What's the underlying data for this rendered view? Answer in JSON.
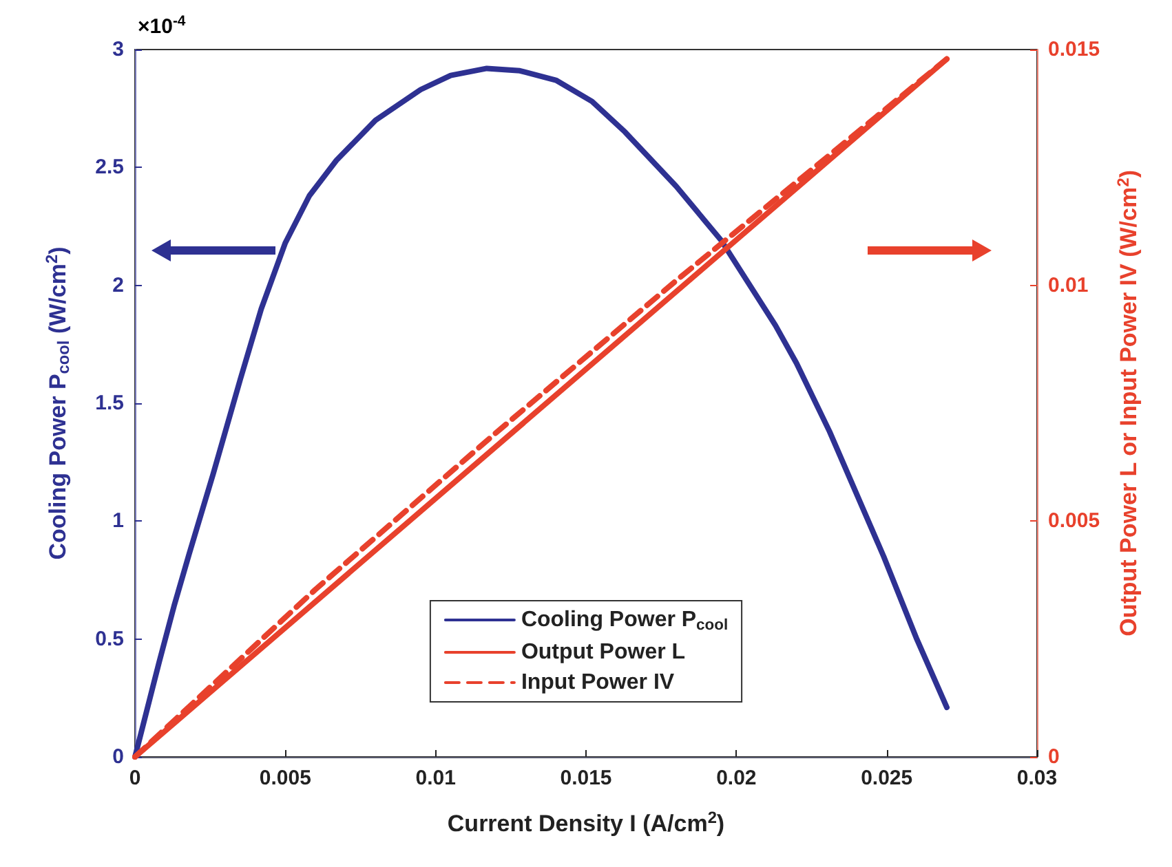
{
  "chart_data": {
    "type": "line",
    "xlabel": "Current Density I (A/cm$^{2}$)",
    "ylabel": "Cooling Power P$_{cool}$ (W/cm$^{2}$)",
    "y2label": "Output Power L or Input Power IV (W/cm$^{2}$)",
    "annotations": [
      "×10$^{-4}$"
    ],
    "series": [
      {
        "name": "Cooling Power P$_{cool}$",
        "color": "#2e3192",
        "x": [
          0,
          0.0004,
          0.0008,
          0.0013,
          0.0018,
          0.0026,
          0.0035,
          0.0042,
          0.005,
          0.0058,
          0.0067,
          0.008,
          0.0095,
          0.0105,
          0.0117,
          0.0128,
          0.014,
          0.0152,
          0.0163,
          0.018,
          0.0195,
          0.0213,
          0.022,
          0.0231,
          0.0249,
          0.026,
          0.027
        ],
        "values": [
          0,
          0.2,
          0.4,
          0.64,
          0.86,
          1.2,
          1.6,
          1.9,
          2.18,
          2.38,
          2.53,
          2.7,
          2.83,
          2.89,
          2.92,
          2.91,
          2.87,
          2.78,
          2.65,
          2.42,
          2.19,
          1.83,
          1.67,
          1.38,
          0.85,
          0.5,
          0.21
        ]
      },
      {
        "name": "Output Power L",
        "color": "#e8412c",
        "axis": "y2",
        "x": [
          0,
          0.027
        ],
        "values": [
          0,
          0.0148
        ]
      },
      {
        "name": "Input Power IV",
        "color": "#e8412c",
        "axis": "y2",
        "line_style": "dashed",
        "x": [
          0,
          0.006,
          0.012,
          0.018,
          0.027
        ],
        "values": [
          0,
          0.00355,
          0.00687,
          0.0101,
          0.0148
        ]
      }
    ],
    "xlim": [
      0,
      0.03
    ],
    "xticks": [
      0,
      0.005,
      0.01,
      0.015,
      0.02,
      0.025,
      0.03
    ],
    "ylim": [
      0,
      3
    ],
    "yticks": [
      0,
      0.5,
      1,
      1.5,
      2,
      2.5,
      3
    ],
    "y2lim": [
      0,
      0.015
    ],
    "y2ticks": [
      0,
      0.005,
      0.01,
      0.015
    ],
    "grid": false,
    "legend": "bottom",
    "marker": "none",
    "line_style": "solid"
  }
}
